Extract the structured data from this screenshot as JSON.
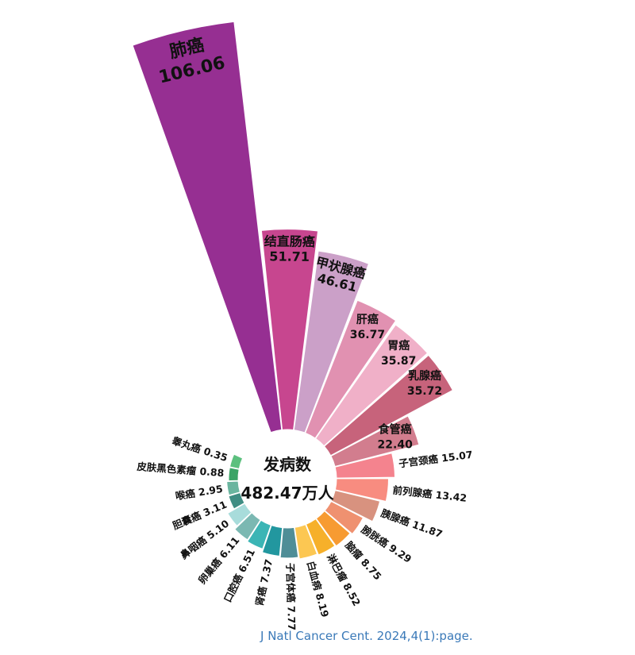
{
  "chart_data": {
    "type": "polar-bar",
    "unit": "万人",
    "center_title": "发病数",
    "center_total": "482.47万人",
    "segments": [
      {
        "name": "肺癌",
        "value": 106.06,
        "color": "#962f92"
      },
      {
        "name": "结直肠癌",
        "value": 51.71,
        "color": "#c7468f"
      },
      {
        "name": "甲状腺癌",
        "value": 46.61,
        "color": "#cba0c8"
      },
      {
        "name": "肝癌",
        "value": 36.77,
        "color": "#e191b1"
      },
      {
        "name": "胃癌",
        "value": 35.87,
        "color": "#f0b0c8"
      },
      {
        "name": "乳腺癌",
        "value": 35.72,
        "color": "#c7637b"
      },
      {
        "name": "食管癌",
        "value": 22.4,
        "color": "#d27d8e"
      },
      {
        "name": "子宫颈癌",
        "value": 15.07,
        "color": "#f4838e"
      },
      {
        "name": "前列腺癌",
        "value": 13.42,
        "color": "#f88c80"
      },
      {
        "name": "胰腺癌",
        "value": 11.87,
        "color": "#d8927f"
      },
      {
        "name": "膀胱癌",
        "value": 9.29,
        "color": "#ef9170"
      },
      {
        "name": "脑瘤",
        "value": 8.75,
        "color": "#f79b32"
      },
      {
        "name": "淋巴瘤",
        "value": 8.52,
        "color": "#f6b02a"
      },
      {
        "name": "白血病",
        "value": 8.19,
        "color": "#fcc752"
      },
      {
        "name": "子宫体癌",
        "value": 7.77,
        "color": "#4f8e97"
      },
      {
        "name": "肾癌",
        "value": 7.37,
        "color": "#22979f"
      },
      {
        "name": "口腔癌",
        "value": 6.51,
        "color": "#3bb5b5"
      },
      {
        "name": "卵巢癌",
        "value": 6.11,
        "color": "#7bb8b2"
      },
      {
        "name": "鼻咽癌",
        "value": 5.1,
        "color": "#a8dcdb"
      },
      {
        "name": "胆囊癌",
        "value": 3.11,
        "color": "#3f8d83"
      },
      {
        "name": "喉癌",
        "value": 2.95,
        "color": "#6ab59f"
      },
      {
        "name": "皮肤黑色素瘤",
        "value": 0.88,
        "color": "#3ba466"
      },
      {
        "name": "睾丸癌",
        "value": 0.35,
        "color": "#5cc07e"
      }
    ]
  },
  "citation": "J Natl Cancer Cent. 2024,4(1):page."
}
